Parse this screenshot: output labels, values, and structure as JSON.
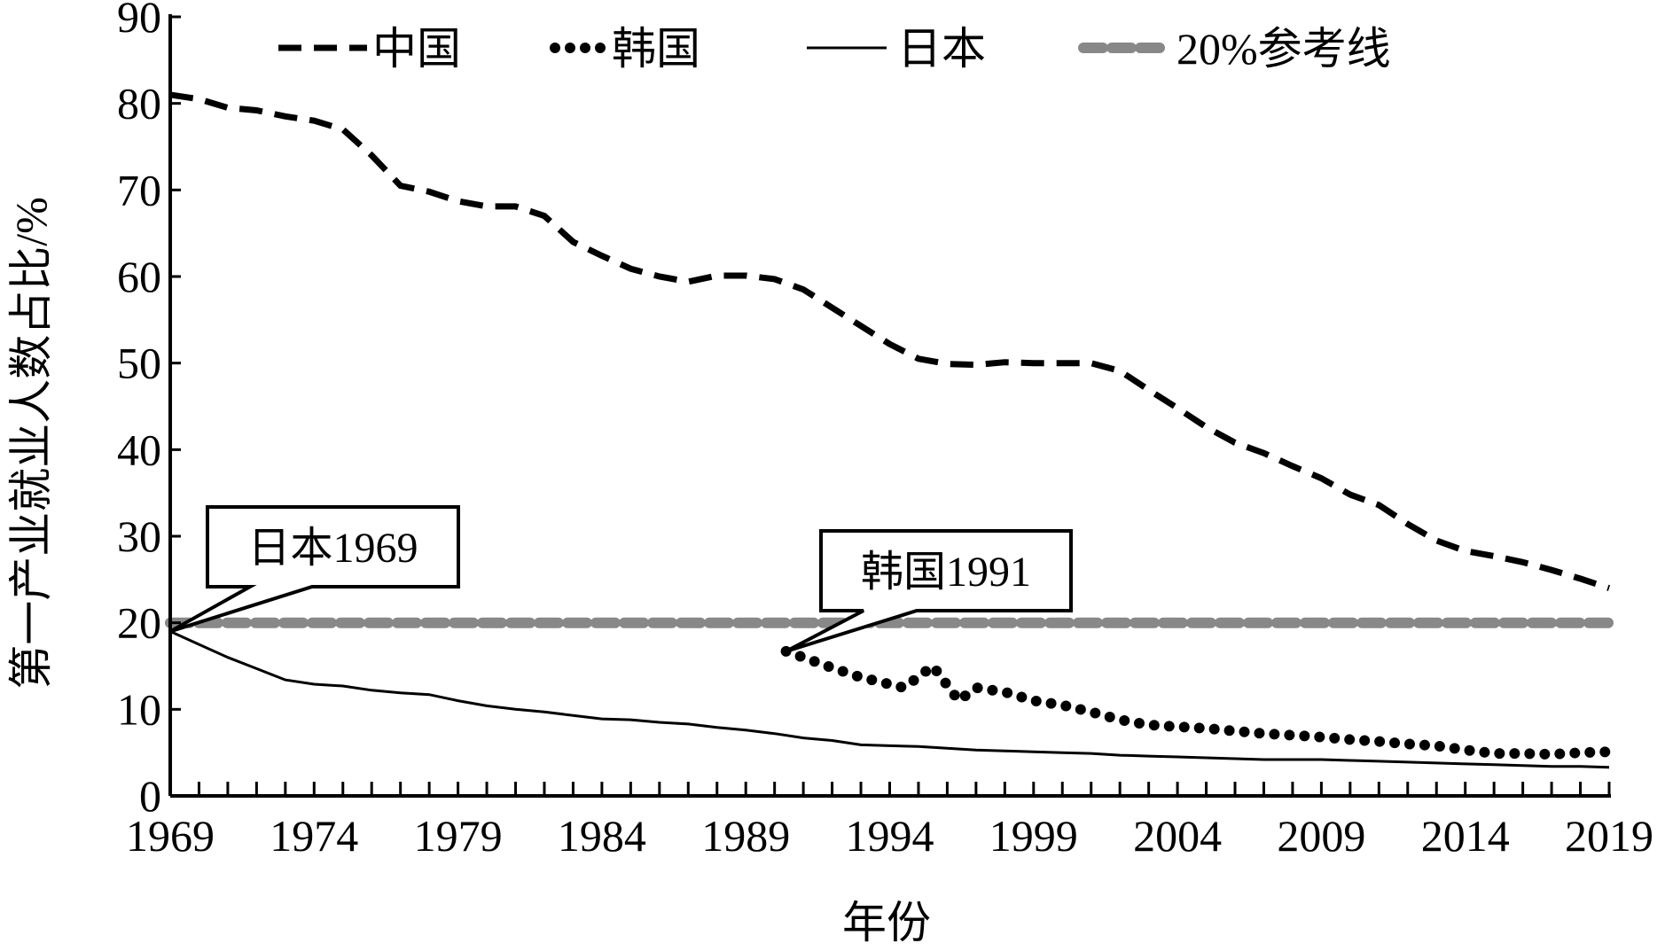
{
  "chart_data": {
    "type": "line",
    "title": "",
    "xlabel": "年份",
    "ylabel": "第一产业就业人数占比/%",
    "xlim": [
      1969,
      2019
    ],
    "ylim": [
      0,
      90
    ],
    "x_ticks": [
      "1969",
      "1974",
      "1979",
      "1984",
      "1989",
      "1994",
      "1999",
      "2004",
      "2009",
      "2014",
      "2019"
    ],
    "y_ticks": [
      "0",
      "10",
      "20",
      "30",
      "40",
      "50",
      "60",
      "70",
      "80",
      "90"
    ],
    "grid": false,
    "legend_position": "top",
    "series": [
      {
        "name": "中国",
        "style": "dashed",
        "color": "#000000",
        "x": [
          1969,
          1970,
          1971,
          1972,
          1973,
          1974,
          1975,
          1976,
          1977,
          1978,
          1979,
          1980,
          1981,
          1982,
          1983,
          1984,
          1985,
          1986,
          1987,
          1988,
          1989,
          1990,
          1991,
          1992,
          1993,
          1994,
          1995,
          1996,
          1997,
          1998,
          1999,
          2000,
          2001,
          2002,
          2003,
          2004,
          2005,
          2006,
          2007,
          2008,
          2009,
          2010,
          2011,
          2012,
          2013,
          2014,
          2015,
          2016,
          2017,
          2018,
          2019
        ],
        "y": [
          81,
          80.5,
          79.5,
          79.2,
          78.5,
          78,
          77,
          74,
          70.5,
          69.8,
          68.7,
          68.1,
          68.1,
          67,
          64,
          62.4,
          60.9,
          60,
          59.4,
          60.1,
          60.1,
          59.7,
          58.5,
          56.4,
          54.3,
          52.2,
          50.5,
          49.9,
          49.8,
          50.1,
          50,
          50,
          50,
          49.1,
          46.9,
          44.8,
          42.6,
          40.8,
          39.6,
          38.1,
          36.7,
          34.8,
          33.6,
          31.4,
          29.5,
          28.3,
          27.7,
          27,
          26.1,
          25.1,
          24
        ]
      },
      {
        "name": "韩国",
        "style": "dotted",
        "color": "#000000",
        "x": [
          1990.4,
          1991,
          1992,
          1993,
          1994.5,
          1995.5,
          1996.4,
          1997,
          1998,
          1999,
          2000,
          2001,
          2002,
          2003,
          2004,
          2005,
          2006,
          2007,
          2008,
          2009,
          2010,
          2011,
          2012,
          2013,
          2014,
          2015,
          2016,
          2017,
          2018,
          2019
        ],
        "y": [
          16.7,
          16,
          14.8,
          13.7,
          12.5,
          15,
          11,
          12.5,
          12,
          11,
          10.5,
          9.7,
          8.8,
          8.2,
          8,
          7.8,
          7.5,
          7.2,
          7,
          6.8,
          6.5,
          6.3,
          6,
          5.8,
          5.3,
          4.9,
          4.9,
          4.8,
          5,
          5.1
        ]
      },
      {
        "name": "日本",
        "style": "solid",
        "color": "#000000",
        "x": [
          1969,
          1970,
          1971,
          1972,
          1973,
          1974,
          1975,
          1976,
          1977,
          1978,
          1979,
          1980,
          1981,
          1982,
          1983,
          1984,
          1985,
          1986,
          1987,
          1988,
          1989,
          1990,
          1991,
          1992,
          1993,
          1994,
          1995,
          1996,
          1997,
          1998,
          1999,
          2000,
          2001,
          2002,
          2003,
          2004,
          2005,
          2006,
          2007,
          2008,
          2009,
          2010,
          2011,
          2012,
          2013,
          2014,
          2015,
          2016,
          2017,
          2018,
          2019
        ],
        "y": [
          19,
          17.5,
          16,
          14.7,
          13.4,
          12.9,
          12.7,
          12.2,
          11.9,
          11.7,
          11,
          10.4,
          10,
          9.7,
          9.3,
          8.9,
          8.8,
          8.5,
          8.3,
          7.9,
          7.6,
          7.2,
          6.7,
          6.4,
          5.9,
          5.8,
          5.7,
          5.5,
          5.3,
          5.2,
          5.1,
          5,
          4.9,
          4.7,
          4.6,
          4.5,
          4.4,
          4.3,
          4.2,
          4.2,
          4.2,
          4.1,
          4,
          3.9,
          3.8,
          3.7,
          3.6,
          3.5,
          3.4,
          3.4,
          3.3
        ]
      },
      {
        "name": "20%参考线",
        "style": "dashed-thick",
        "color": "#888888",
        "x": [
          1969,
          2019
        ],
        "y": [
          20,
          20
        ]
      }
    ],
    "annotations": [
      {
        "text": "日本1969",
        "x": 1969,
        "y": 19
      },
      {
        "text": "韩国1991",
        "x": 1990.4,
        "y": 16.7
      }
    ]
  }
}
